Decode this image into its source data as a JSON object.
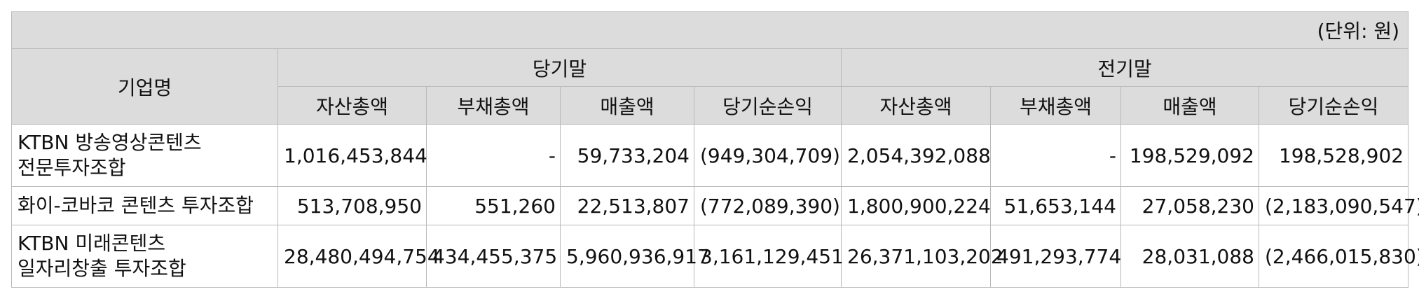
{
  "unit": "(단위: 원)",
  "header": {
    "company_col": "기업명",
    "groups": [
      "당기말",
      "전기말"
    ],
    "sub_columns": [
      "자산총액",
      "부채총액",
      "매출액",
      "당기순손익",
      "자산총액",
      "부채총액",
      "매출액",
      "당기순손익"
    ]
  },
  "rows": [
    {
      "name_lines": [
        "KTBN 방송영상콘텐츠",
        "전문투자조합"
      ],
      "values": [
        "1,016,453,844",
        "-",
        "59,733,204",
        "(949,304,709)",
        "2,054,392,088",
        "-",
        "198,529,092",
        "198,528,902"
      ]
    },
    {
      "name_lines": [
        "화이-코바코 콘텐츠 투자조합"
      ],
      "values": [
        "513,708,950",
        "551,260",
        "22,513,807",
        "(772,089,390)",
        "1,800,900,224",
        "51,653,144",
        "27,058,230",
        "(2,183,090,547)"
      ]
    },
    {
      "name_lines": [
        "KTBN 미래콘텐츠",
        "일자리창출 투자조합"
      ],
      "values": [
        "28,480,494,754",
        "434,455,375",
        "5,960,936,917",
        "3,161,129,451",
        "26,371,103,202",
        "491,293,774",
        "28,031,088",
        "(2,466,015,830)"
      ]
    }
  ]
}
